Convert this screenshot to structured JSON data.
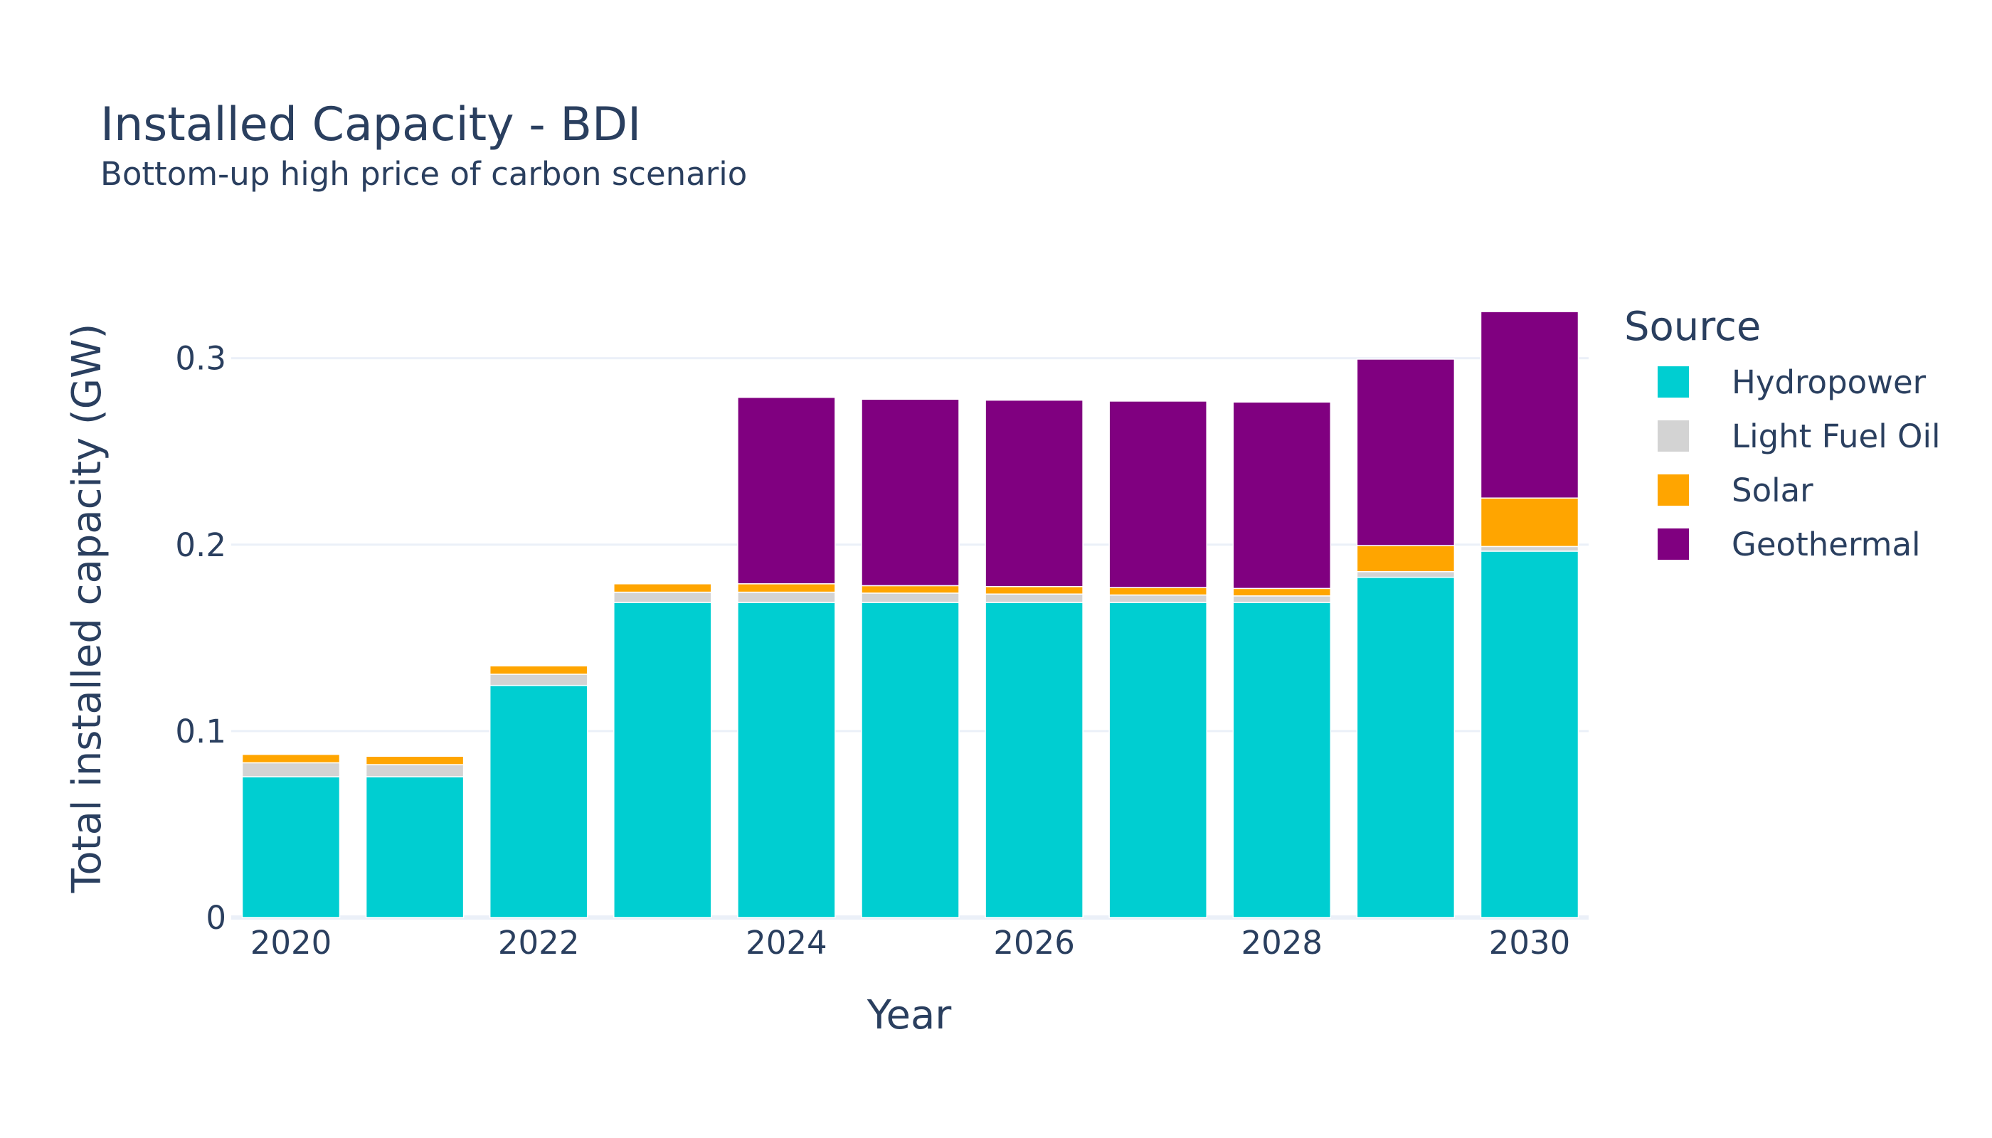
{
  "chart_data": {
    "type": "bar",
    "barmode": "stack",
    "title": "Installed Capacity - BDI",
    "subtitle": "Bottom-up high price of carbon scenario",
    "xlabel": "Year",
    "ylabel": "Total installed capacity (GW)",
    "categories": [
      2020,
      2021,
      2022,
      2023,
      2024,
      2025,
      2026,
      2027,
      2028,
      2029,
      2030
    ],
    "x_tick_labels": [
      "2020",
      "2022",
      "2024",
      "2026",
      "2028",
      "2030"
    ],
    "y_ticks": [
      0,
      0.1,
      0.2,
      0.3
    ],
    "y_tick_labels": [
      "0",
      "0.1",
      "0.2",
      "0.3"
    ],
    "ylim": [
      0,
      0.33
    ],
    "grid": true,
    "legend": {
      "title": "Source",
      "placement": "right"
    },
    "series": [
      {
        "name": "Hydropower",
        "color": "#00CED1",
        "values": [
          0.0755,
          0.0755,
          0.1245,
          0.169,
          0.169,
          0.169,
          0.169,
          0.169,
          0.169,
          0.1825,
          0.1965
        ]
      },
      {
        "name": "Light Fuel Oil",
        "color": "#D3D3D3",
        "values": [
          0.0075,
          0.0065,
          0.006,
          0.0055,
          0.0055,
          0.005,
          0.0045,
          0.004,
          0.0035,
          0.003,
          0.0025
        ]
      },
      {
        "name": "Solar",
        "color": "#FFA500",
        "values": [
          0.0045,
          0.0045,
          0.0045,
          0.0045,
          0.0045,
          0.004,
          0.004,
          0.004,
          0.004,
          0.014,
          0.026
        ]
      },
      {
        "name": "Geothermal",
        "color": "#800080",
        "values": [
          0,
          0,
          0,
          0,
          0.1,
          0.1,
          0.1,
          0.1,
          0.1,
          0.1,
          0.1
        ]
      }
    ]
  }
}
